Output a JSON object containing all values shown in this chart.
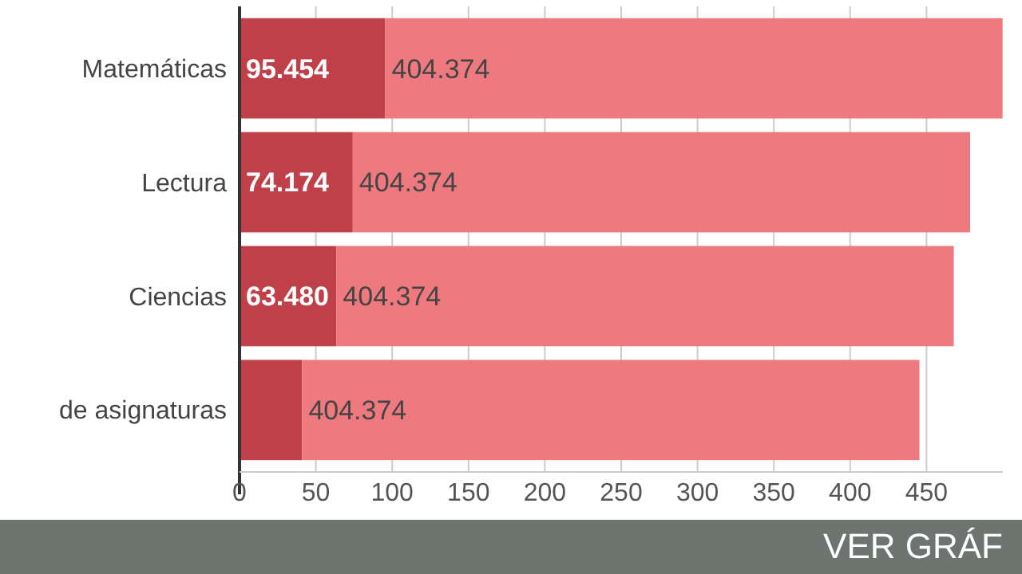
{
  "chart_data": {
    "type": "bar",
    "orientation": "horizontal",
    "stacked": true,
    "categories": [
      "Matemáticas",
      "Lectura",
      "Ciencias",
      "de asignaturas"
    ],
    "series": [
      {
        "color": "#c0404a",
        "values": [
          95.454,
          74.174,
          63.48,
          41
        ],
        "value_labels": [
          "95.454",
          "74.174",
          "63.480",
          null
        ]
      },
      {
        "color": "#ee7a80",
        "values": [
          404.374,
          404.374,
          404.374,
          404.374
        ],
        "value_labels": [
          "404.374",
          "404.374",
          "404.374",
          "404.374"
        ]
      }
    ],
    "xlim": [
      0,
      500
    ],
    "xticks": [
      0,
      50,
      100,
      150,
      200,
      250,
      300,
      350,
      400,
      450
    ],
    "grid": "x",
    "annotations": [
      "VER GRÁF"
    ]
  }
}
